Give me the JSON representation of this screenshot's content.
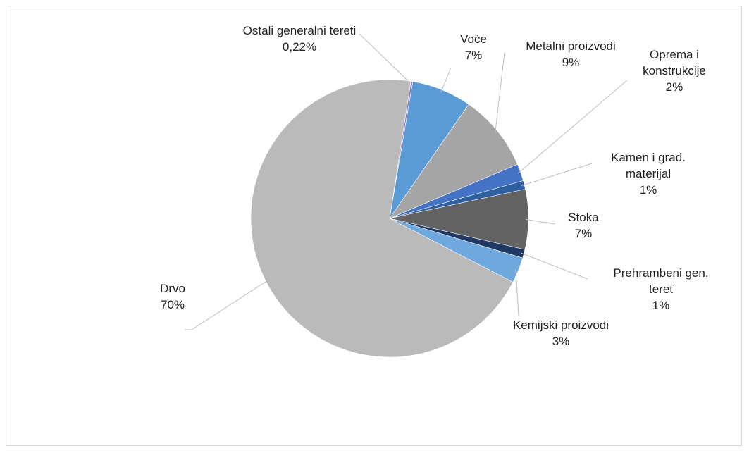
{
  "chart_data": {
    "type": "pie",
    "categories": [
      "Ostali generalni tereti",
      "Voće",
      "Metalni proizvodi",
      "Oprema i konstrukcije",
      "Kamen i građ. materijal",
      "Stoka",
      "Prehrambeni gen. teret",
      "Kemijski proizvodi",
      "Drvo"
    ],
    "values": [
      0.22,
      7,
      9,
      2,
      1,
      7,
      1,
      3,
      70
    ],
    "value_labels": [
      "0,22%",
      "7%",
      "9%",
      "2%",
      "1%",
      "7%",
      "1%",
      "3%",
      "70%"
    ],
    "colors": [
      "#8e7cc3",
      "#5b9bd5",
      "#a5a5a5",
      "#4472c4",
      "#2e5f9e",
      "#636363",
      "#1f3864",
      "#6fa8dc",
      "#bababa"
    ]
  }
}
